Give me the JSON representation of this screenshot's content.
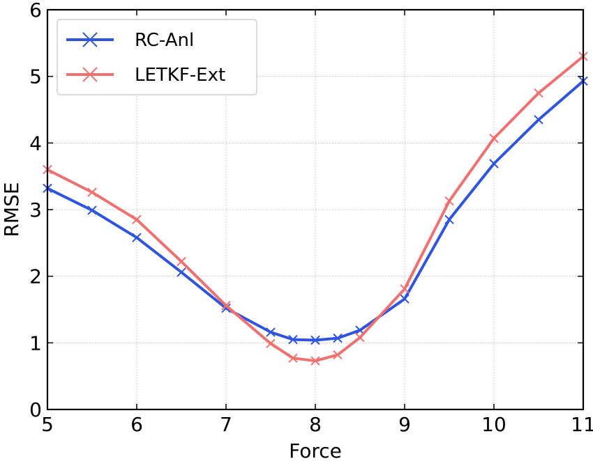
{
  "chart_data": {
    "type": "line",
    "title": "",
    "xlabel": "Force",
    "ylabel": "RMSE",
    "xlim": [
      5,
      11
    ],
    "ylim": [
      0,
      6
    ],
    "xticks": [
      5,
      6,
      7,
      8,
      9,
      10,
      11
    ],
    "yticks": [
      0,
      1,
      2,
      3,
      4,
      5,
      6
    ],
    "grid": true,
    "legend_position": "top-left",
    "series": [
      {
        "name": "RC-Anl",
        "color": "#2f55e0",
        "x": [
          5,
          5.5,
          6,
          6.5,
          7,
          7.5,
          7.75,
          8,
          8.25,
          8.5,
          9,
          9.5,
          10,
          10.5,
          11
        ],
        "y": [
          3.32,
          2.99,
          2.58,
          2.06,
          1.52,
          1.16,
          1.05,
          1.04,
          1.07,
          1.19,
          1.66,
          2.85,
          3.69,
          4.35,
          4.93
        ]
      },
      {
        "name": "LETKF-Ext",
        "color": "#f07070",
        "x": [
          5,
          5.5,
          6,
          6.5,
          7,
          7.5,
          7.75,
          8,
          8.25,
          8.5,
          9,
          9.5,
          10,
          10.5,
          11
        ],
        "y": [
          3.6,
          3.26,
          2.85,
          2.22,
          1.56,
          0.99,
          0.77,
          0.73,
          0.82,
          1.08,
          1.81,
          3.13,
          4.07,
          4.75,
          5.3
        ]
      }
    ]
  }
}
